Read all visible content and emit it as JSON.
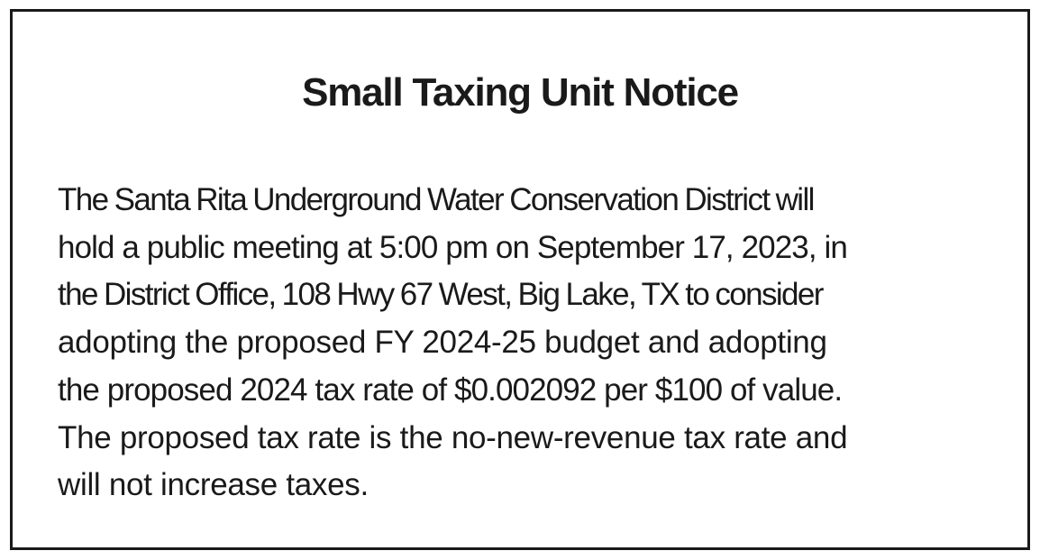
{
  "notice": {
    "title": "Small Taxing Unit Notice",
    "body_lines": [
      "The Santa Rita Underground Water Conservation District will",
      "hold a public meeting at 5:00 pm on September 17, 2023, in",
      "the District Office, 108 Hwy 67 West, Big Lake, TX to consider",
      "adopting the proposed FY 2024-25 budget and adopting",
      "the proposed 2024 tax rate of $0.002092 per $100 of value.",
      "The proposed tax rate is the no-new-revenue tax rate and",
      "will not increase taxes."
    ]
  }
}
